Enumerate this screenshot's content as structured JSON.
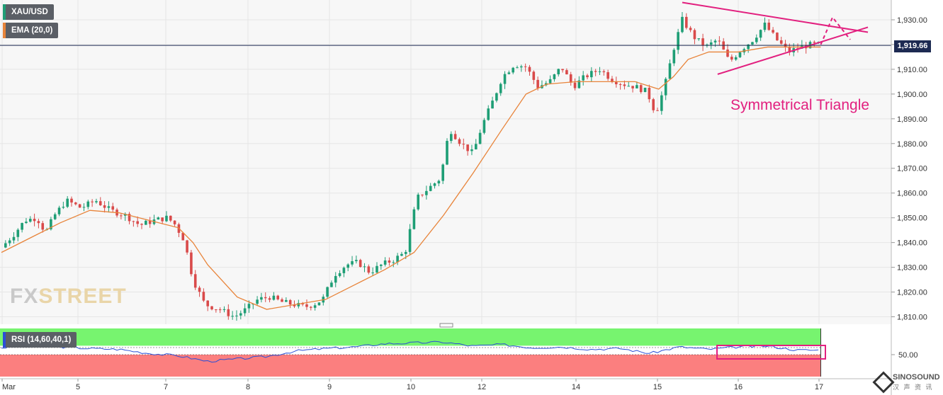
{
  "instrument": "XAU/USD",
  "indicator_ema": "EMA (20,0)",
  "indicator_rsi": "RSI (14,60,40,1)",
  "current_price_label": "1,919.66",
  "annotation": "Symmetrical Triangle",
  "logo": {
    "part1": "FX",
    "part2": "STREET"
  },
  "brand": {
    "name": "SINOSOUND",
    "sub": "汉 声 资 讯"
  },
  "colors": {
    "up": "#1e9e75",
    "down": "#d94a4a",
    "ema": "#e8843a",
    "rsi_line": "#2b4fd6",
    "rsi_upper_zone": "#77f46f",
    "rsi_lower_zone": "#fb7f7f",
    "triangle": "#e2207f",
    "price_line": "#1d2a52"
  },
  "chart_data": {
    "type": "candlestick",
    "title": "",
    "ylim": [
      1807,
      1938
    ],
    "y_ticks": [
      "1,930.00",
      "1,920.00",
      "1,910.00",
      "1,900.00",
      "1,890.00",
      "1,880.00",
      "1,870.00",
      "1,860.00",
      "1,850.00",
      "1,840.00",
      "1,830.00",
      "1,820.00",
      "1,810.00"
    ],
    "y_tick_values": [
      1930,
      1920,
      1910,
      1900,
      1890,
      1880,
      1870,
      1860,
      1850,
      1840,
      1830,
      1820,
      1810
    ],
    "x_ticks": [
      "Mar",
      "5",
      "7",
      "8",
      "9",
      "10",
      "12",
      "14",
      "15",
      "16",
      "17"
    ],
    "current_price": 1919.66,
    "price_path": [
      [
        0,
        1838
      ],
      [
        0.4,
        1843
      ],
      [
        0.8,
        1849
      ],
      [
        1.2,
        1850
      ],
      [
        1.5,
        1844
      ],
      [
        1.8,
        1851
      ],
      [
        2.2,
        1857
      ],
      [
        2.7,
        1854
      ],
      [
        3.2,
        1857
      ],
      [
        3.7,
        1853
      ],
      [
        4.2,
        1851
      ],
      [
        4.7,
        1847
      ],
      [
        5.2,
        1849
      ],
      [
        5.6,
        1850
      ],
      [
        5.85,
        1848
      ],
      [
        6.2,
        1841
      ],
      [
        6.5,
        1825
      ],
      [
        6.9,
        1815
      ],
      [
        7.4,
        1813
      ],
      [
        7.9,
        1810
      ],
      [
        8.3,
        1813
      ],
      [
        8.7,
        1817
      ],
      [
        9.1,
        1818
      ],
      [
        9.5,
        1816
      ],
      [
        9.9,
        1815
      ],
      [
        10.3,
        1814
      ],
      [
        10.6,
        1815
      ],
      [
        10.9,
        1817
      ],
      [
        11.3,
        1827
      ],
      [
        11.7,
        1831
      ],
      [
        12.1,
        1832
      ],
      [
        12.5,
        1828
      ],
      [
        12.9,
        1831
      ],
      [
        13.3,
        1833
      ],
      [
        13.7,
        1836
      ],
      [
        14.1,
        1858
      ],
      [
        14.5,
        1862
      ],
      [
        14.9,
        1866
      ],
      [
        15.2,
        1886
      ],
      [
        15.6,
        1880
      ],
      [
        16.0,
        1876
      ],
      [
        16.3,
        1887
      ],
      [
        16.7,
        1898
      ],
      [
        17.0,
        1907
      ],
      [
        17.4,
        1912
      ],
      [
        17.8,
        1911
      ],
      [
        18.2,
        1903
      ],
      [
        18.6,
        1905
      ],
      [
        19.0,
        1911
      ],
      [
        19.4,
        1903
      ],
      [
        19.8,
        1907
      ],
      [
        20.3,
        1910
      ],
      [
        20.7,
        1906
      ],
      [
        21.1,
        1904
      ],
      [
        21.5,
        1903
      ],
      [
        21.9,
        1901
      ],
      [
        22.2,
        1892
      ],
      [
        22.5,
        1903
      ],
      [
        22.8,
        1918
      ],
      [
        23.1,
        1930
      ],
      [
        23.5,
        1923
      ],
      [
        23.9,
        1919
      ],
      [
        24.3,
        1922
      ],
      [
        24.7,
        1913
      ],
      [
        25.1,
        1918
      ],
      [
        25.5,
        1922
      ],
      [
        25.9,
        1928
      ],
      [
        26.3,
        1922
      ],
      [
        26.7,
        1917
      ],
      [
        27.1,
        1919
      ],
      [
        27.5,
        1920
      ],
      [
        27.8,
        1920
      ]
    ],
    "ema_path": [
      [
        0,
        1836
      ],
      [
        1,
        1842
      ],
      [
        2,
        1848
      ],
      [
        3,
        1853
      ],
      [
        4,
        1852
      ],
      [
        5,
        1849
      ],
      [
        6,
        1846
      ],
      [
        6.5,
        1840
      ],
      [
        7,
        1831
      ],
      [
        8,
        1818
      ],
      [
        9,
        1813
      ],
      [
        10,
        1815
      ],
      [
        11,
        1817
      ],
      [
        12,
        1823
      ],
      [
        13,
        1829
      ],
      [
        14,
        1836
      ],
      [
        15,
        1851
      ],
      [
        16,
        1868
      ],
      [
        17,
        1886
      ],
      [
        17.8,
        1900
      ],
      [
        18.5,
        1904
      ],
      [
        19.5,
        1905
      ],
      [
        20.5,
        1905
      ],
      [
        21.5,
        1905
      ],
      [
        22.3,
        1902
      ],
      [
        22.8,
        1907
      ],
      [
        23.3,
        1914
      ],
      [
        24,
        1917
      ],
      [
        25,
        1917
      ],
      [
        26,
        1919
      ],
      [
        27,
        1919
      ],
      [
        27.8,
        1919
      ]
    ],
    "triangle": {
      "upper": [
        [
          23.1,
          1937
        ],
        [
          29.4,
          1925
        ]
      ],
      "lower": [
        [
          24.3,
          1908
        ],
        [
          29.4,
          1927
        ]
      ],
      "projection": [
        [
          27.8,
          1920
        ],
        [
          28.2,
          1931
        ],
        [
          28.8,
          1922
        ]
      ]
    },
    "rsi": {
      "levels": {
        "upper": 60,
        "lower": 40,
        "mid": 50
      },
      "ylim": [
        20,
        80
      ],
      "y_ticks": [
        "50.00"
      ],
      "path": [
        [
          0,
          56
        ],
        [
          1,
          58
        ],
        [
          2,
          57
        ],
        [
          3,
          55
        ],
        [
          4,
          54
        ],
        [
          5,
          49
        ],
        [
          6,
          46
        ],
        [
          7,
          39
        ],
        [
          8,
          42
        ],
        [
          9,
          45
        ],
        [
          10,
          52
        ],
        [
          11,
          55
        ],
        [
          12,
          57
        ],
        [
          13,
          61
        ],
        [
          14,
          62
        ],
        [
          15,
          63
        ],
        [
          16,
          58
        ],
        [
          17,
          60
        ],
        [
          18,
          56
        ],
        [
          19,
          57
        ],
        [
          20,
          54
        ],
        [
          21,
          55
        ],
        [
          22,
          49
        ],
        [
          23,
          57
        ],
        [
          24,
          54
        ],
        [
          25,
          57
        ],
        [
          26,
          58
        ],
        [
          27,
          53
        ],
        [
          27.8,
          53
        ]
      ]
    }
  }
}
